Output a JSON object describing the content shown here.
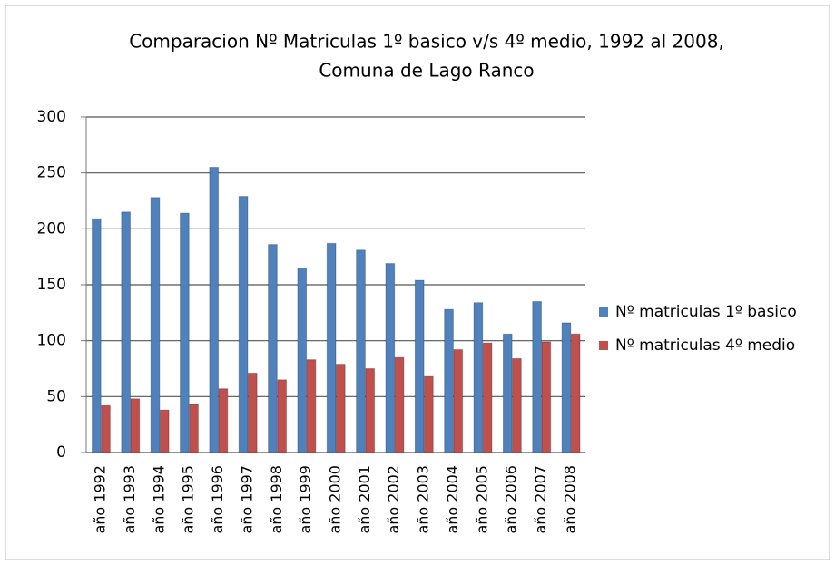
{
  "chart_data": {
    "type": "bar",
    "title": [
      "Comparacion Nº Matriculas 1º basico v/s 4º medio, 1992 al 2008,",
      "Comuna de Lago Ranco"
    ],
    "categories": [
      "año 1992",
      "año 1993",
      "año 1994",
      "año 1995",
      "año 1996",
      "año 1997",
      "año 1998",
      "año 1999",
      "año 2000",
      "año 2001",
      "año 2002",
      "año 2003",
      "año 2004",
      "año 2005",
      "año 2006",
      "año 2007",
      "año 2008"
    ],
    "series": [
      {
        "name": "Nº matriculas 1º basico",
        "color": "#4f81bd",
        "values": [
          209,
          215,
          228,
          214,
          255,
          229,
          186,
          165,
          187,
          181,
          169,
          154,
          128,
          134,
          106,
          135,
          116
        ]
      },
      {
        "name": "Nº matriculas 4º medio",
        "color": "#c0504d",
        "values": [
          42,
          48,
          38,
          43,
          57,
          71,
          65,
          83,
          79,
          75,
          85,
          68,
          92,
          98,
          84,
          99,
          106
        ]
      }
    ],
    "ylim": [
      0,
      300
    ],
    "yticks": [
      0,
      50,
      100,
      150,
      200,
      250,
      300
    ],
    "grid": true,
    "legend": "right"
  }
}
